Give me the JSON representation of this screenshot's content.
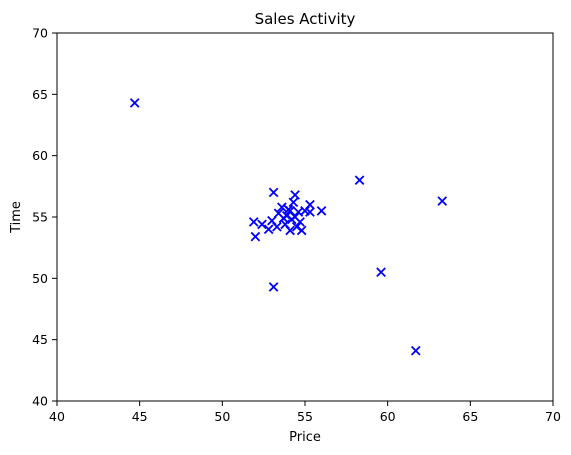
{
  "chart_data": {
    "type": "scatter",
    "title": "Sales Activity",
    "xlabel": "Price",
    "ylabel": "Time",
    "xlim": [
      40,
      70
    ],
    "ylim": [
      40,
      70
    ],
    "xticks": [
      40,
      45,
      50,
      55,
      60,
      65,
      70
    ],
    "yticks": [
      40,
      45,
      50,
      55,
      60,
      65,
      70
    ],
    "grid": false,
    "marker": "x",
    "marker_color": "#0000ff",
    "points": [
      {
        "x": 44.7,
        "y": 64.3
      },
      {
        "x": 53.1,
        "y": 57.0
      },
      {
        "x": 58.3,
        "y": 58.0
      },
      {
        "x": 63.3,
        "y": 56.3
      },
      {
        "x": 59.6,
        "y": 50.5
      },
      {
        "x": 53.1,
        "y": 49.3
      },
      {
        "x": 61.7,
        "y": 44.1
      },
      {
        "x": 52.0,
        "y": 53.4
      },
      {
        "x": 51.9,
        "y": 54.6
      },
      {
        "x": 52.4,
        "y": 54.4
      },
      {
        "x": 52.8,
        "y": 54.0
      },
      {
        "x": 53.0,
        "y": 54.7
      },
      {
        "x": 53.3,
        "y": 54.2
      },
      {
        "x": 53.4,
        "y": 55.3
      },
      {
        "x": 53.6,
        "y": 55.8
      },
      {
        "x": 53.8,
        "y": 54.4
      },
      {
        "x": 53.9,
        "y": 55.1
      },
      {
        "x": 54.0,
        "y": 55.6
      },
      {
        "x": 54.1,
        "y": 53.9
      },
      {
        "x": 54.2,
        "y": 54.8
      },
      {
        "x": 54.3,
        "y": 56.2
      },
      {
        "x": 54.4,
        "y": 56.8
      },
      {
        "x": 54.4,
        "y": 55.0
      },
      {
        "x": 54.5,
        "y": 54.2
      },
      {
        "x": 54.6,
        "y": 55.4
      },
      {
        "x": 54.7,
        "y": 54.6
      },
      {
        "x": 54.8,
        "y": 53.9
      },
      {
        "x": 55.0,
        "y": 55.5
      },
      {
        "x": 55.3,
        "y": 56.0
      },
      {
        "x": 55.3,
        "y": 55.4
      },
      {
        "x": 56.0,
        "y": 55.5
      },
      {
        "x": 53.7,
        "y": 54.9
      },
      {
        "x": 54.1,
        "y": 55.5
      }
    ]
  }
}
